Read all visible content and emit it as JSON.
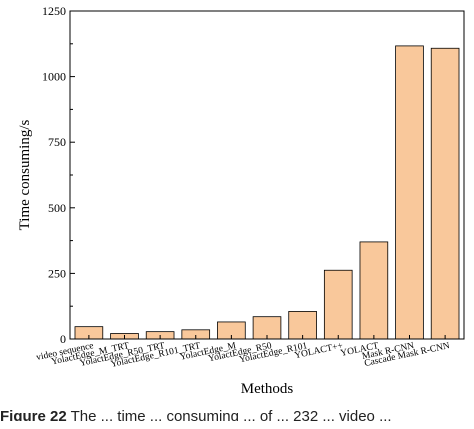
{
  "chart_data": {
    "type": "bar",
    "categories": [
      "video sequence",
      "YolactEdge_M_TRT",
      "YolactEdge_R50_TRT",
      "YolactEdge_R101_TRT",
      "YolactEdge_M",
      "YolactEdge_R50",
      "YolactEdge_R101",
      "YOLACT++",
      "YOLACT",
      "Mask R-CNN",
      "Cascade Mask R-CNN"
    ],
    "values": [
      47,
      21,
      28,
      35,
      65,
      85,
      105,
      262,
      370,
      1117,
      1108
    ],
    "xlabel": "Methods",
    "ylabel": "Time consuming/s",
    "ylim": [
      0,
      1250
    ],
    "yticks": [
      0,
      250,
      500,
      750,
      1000,
      1250
    ],
    "bar_color": "#f9c89b",
    "grid": false
  },
  "caption": {
    "figure_label": "Figure 22",
    "text": "The ... time ... consuming ... of ... 232 ... video ..."
  }
}
